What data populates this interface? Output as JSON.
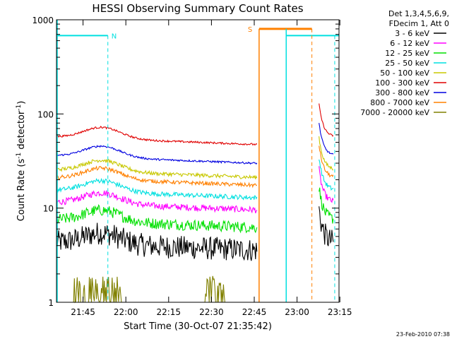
{
  "chart_data": {
    "type": "line",
    "title": "HESSI Observing Summary Count Rates",
    "xlabel": "Start Time (30-Oct-07 21:35:42)",
    "ylabel_main": "Count Rate (s",
    "ylabel_sup1": "-1",
    "ylabel_mid": " detector",
    "ylabel_sup2": "-1",
    "ylabel_end": ")",
    "x_unit": "minutes since 21:35:42",
    "xlim": [
      0,
      99
    ],
    "ylim": [
      1,
      1000
    ],
    "yscale": "log",
    "x_ticks": [
      {
        "v": 9.3,
        "label": "21:45"
      },
      {
        "v": 24.3,
        "label": "22:00"
      },
      {
        "v": 39.3,
        "label": "22:15"
      },
      {
        "v": 54.3,
        "label": "22:30"
      },
      {
        "v": 69.3,
        "label": "22:45"
      },
      {
        "v": 84.3,
        "label": "23:00"
      },
      {
        "v": 99.3,
        "label": "23:15"
      }
    ],
    "y_ticks": [
      {
        "v": 1,
        "label": "1"
      },
      {
        "v": 10,
        "label": "10"
      },
      {
        "v": 100,
        "label": "100"
      },
      {
        "v": 1000,
        "label": "1000"
      }
    ],
    "legend_header": [
      "Det 1,3,4,5,6,9,",
      "FDecim 1, Att 0"
    ],
    "series": [
      {
        "name": "3 - 6 keV",
        "color": "#000000",
        "base": 4.3,
        "noise": 0.25,
        "hump": 0.12
      },
      {
        "name": "6 - 12 keV",
        "color": "#ff00ff",
        "base": 11.5,
        "noise": 0.07,
        "hump": 0.12
      },
      {
        "name": "12 - 25 keV",
        "color": "#00e000",
        "base": 7.5,
        "noise": 0.12,
        "hump": 0.12
      },
      {
        "name": "25 - 50 keV",
        "color": "#00e0e0",
        "base": 15.5,
        "noise": 0.05,
        "hump": 0.12
      },
      {
        "name": "50 - 100 keV",
        "color": "#c8c800",
        "base": 25.5,
        "noise": 0.04,
        "hump": 0.12
      },
      {
        "name": "100 - 300 keV",
        "color": "#e00000",
        "base": 57,
        "noise": 0.02,
        "hump": 0.12
      },
      {
        "name": "300 - 800 keV",
        "color": "#0000e0",
        "base": 36,
        "noise": 0.02,
        "hump": 0.12
      },
      {
        "name": "800 - 7000 keV",
        "color": "#ff8000",
        "base": 21,
        "noise": 0.04,
        "hump": 0.12
      },
      {
        "name": "7000 - 20000 keV",
        "color": "#808000",
        "base": 1.4,
        "noise": 0.3,
        "hump": 0
      }
    ],
    "segments": [
      [
        0,
        70.3
      ],
      [
        92,
        97
      ]
    ],
    "annotations": {
      "night_label": "N",
      "saa_label": "S",
      "night_bars": [
        [
          0,
          18
        ],
        [
          80.5,
          99
        ]
      ],
      "saa_bar": [
        71,
        89.5
      ],
      "bar_level": 680,
      "cyan_vlines_solid": [
        80.5
      ],
      "cyan_vlines_dashed": [
        18,
        97.5
      ],
      "orange_vline_solid": 71,
      "orange_vline_dashed": 89.5,
      "cyan_color": "#00e0e0",
      "orange_color": "#ff8000"
    },
    "footer_date": "23-Feb-2010 07:38"
  }
}
